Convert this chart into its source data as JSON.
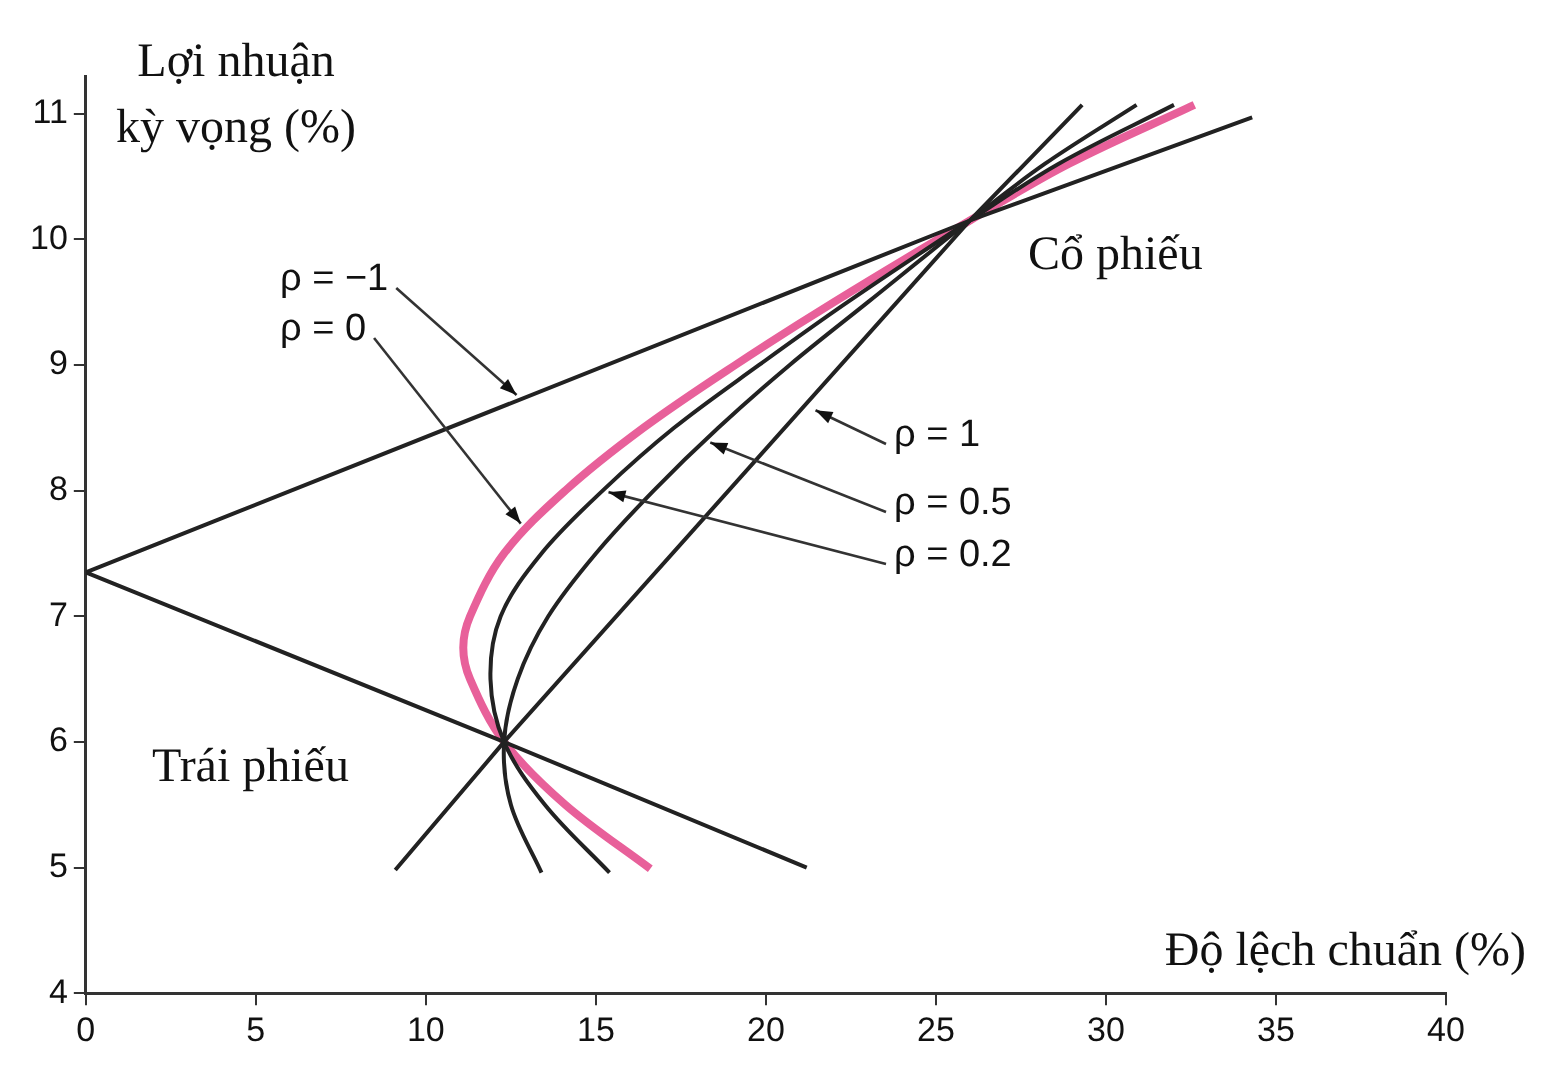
{
  "chart_data": {
    "type": "line",
    "xlabel": "Độ lệch chuẩn (%)",
    "ylabel": "Lợi nhuận kỳ vọng (%)",
    "xlim": [
      0,
      40
    ],
    "xticks": [
      0,
      5,
      10,
      15,
      20,
      25,
      30,
      35,
      40
    ],
    "ylim": [
      4,
      11.3
    ],
    "yticks": [
      4,
      5,
      6,
      7,
      8,
      9,
      10,
      11
    ],
    "grid": false,
    "legend": false,
    "marker": "none",
    "line_style": "solid",
    "series": [
      {
        "color": "#222222",
        "x": [
          21.2,
          12.3,
          0,
          26,
          34.3
        ],
        "values": [
          5.0,
          6.0,
          7.35,
          10.15,
          10.97
        ]
      },
      {
        "color": "#222222",
        "x": [
          9.1,
          12.3,
          26,
          29.3
        ],
        "values": [
          4.98,
          6.0,
          10.15,
          11.07
        ]
      },
      {
        "color": "#222222",
        "x": [
          13.4,
          12.5,
          12.3,
          12.7,
          13.6,
          15.0,
          16.7,
          18.6,
          20.7,
          23.0,
          26,
          28.2,
          30.9
        ],
        "values": [
          4.96,
          5.5,
          6.0,
          6.5,
          7.0,
          7.5,
          8.0,
          8.5,
          9.0,
          9.5,
          10.15,
          10.6,
          11.07
        ]
      },
      {
        "color": "#222222",
        "x": [
          15.4,
          13.5,
          12.3,
          11.9,
          12.2,
          13.4,
          15.2,
          17.3,
          19.8,
          22.4,
          26,
          28.6,
          32.0
        ],
        "values": [
          4.96,
          5.5,
          6.0,
          6.5,
          7.0,
          7.5,
          8.0,
          8.5,
          9.0,
          9.5,
          10.15,
          10.6,
          11.07
        ]
      },
      {
        "color": "#e8609a",
        "x": [
          16.6,
          14.1,
          12.3,
          11.3,
          11.1,
          11.3,
          12.3,
          14.1,
          16.4,
          19.1,
          22.0,
          26,
          28.9,
          32.6
        ],
        "values": [
          4.99,
          5.5,
          6.0,
          6.5,
          6.75,
          7.0,
          7.5,
          8.0,
          8.5,
          9.0,
          9.5,
          10.15,
          10.6,
          11.07
        ]
      }
    ],
    "annotations": [
      {
        "text": "ρ = −1",
        "x": 12.8,
        "y": 8.73
      },
      {
        "text": "ρ = 0",
        "x": 12.9,
        "y": 7.7
      },
      {
        "text": "ρ = 1",
        "x": 21.3,
        "y": 8.66
      },
      {
        "text": "ρ = 0.5",
        "x": 18.2,
        "y": 8.4
      },
      {
        "text": "ρ = 0.2",
        "x": 15.2,
        "y": 8.0
      },
      "Cổ phiếu",
      "Trái phiếu"
    ]
  }
}
